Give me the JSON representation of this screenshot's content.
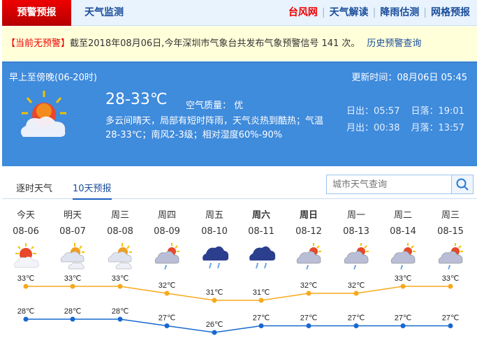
{
  "nav": {
    "active": "预警预报",
    "left": "天气监测",
    "right": [
      "台风网",
      "天气解读",
      "降雨估测",
      "网格预报"
    ]
  },
  "alert": {
    "status": "【当前无预警】",
    "text": "截至2018年08月06日,今年深圳市气象台共发布气象预警信号 141 次。",
    "link": "历史预警查询"
  },
  "today": {
    "period": "早上至傍晚(06-20时)",
    "update": "更新时间：08月06日 05:45",
    "icon": "sunny-cloudy-icon",
    "temp": "28-33℃",
    "air_quality": "空气质量： 优",
    "desc": "多云间晴天，局部有短时阵雨，天气炎热到酷热；气温28-33℃；南风2-3级；相对湿度60%-90%",
    "sunrise": "日出：05:57",
    "sunset": "日落：19:01",
    "moonrise": "月出：00:38",
    "moonset": "月落：13:57"
  },
  "tabs": [
    "逐时天气",
    "10天预报"
  ],
  "search": {
    "placeholder": "城市天气查询",
    "icon": "search-icon"
  },
  "colors": {
    "high": "#f7a91b",
    "low": "#1769cf",
    "panel": "#3f8bdc"
  },
  "days": [
    {
      "name": "今天",
      "date": "08-06",
      "icon": "sunny-cloudy",
      "high": "33℃",
      "low": "28℃",
      "bold": false
    },
    {
      "name": "明天",
      "date": "08-07",
      "icon": "partly-cloudy",
      "high": "33℃",
      "low": "28℃",
      "bold": false
    },
    {
      "name": "周三",
      "date": "08-08",
      "icon": "partly-cloudy",
      "high": "33℃",
      "low": "28℃",
      "bold": false
    },
    {
      "name": "周四",
      "date": "08-09",
      "icon": "shower",
      "high": "32℃",
      "low": "27℃",
      "bold": false
    },
    {
      "name": "周五",
      "date": "08-10",
      "icon": "rain",
      "high": "31℃",
      "low": "26℃",
      "bold": false
    },
    {
      "name": "周六",
      "date": "08-11",
      "icon": "rain",
      "high": "31℃",
      "low": "27℃",
      "bold": true
    },
    {
      "name": "周日",
      "date": "08-12",
      "icon": "shower",
      "high": "32℃",
      "low": "27℃",
      "bold": true
    },
    {
      "name": "周一",
      "date": "08-13",
      "icon": "shower",
      "high": "32℃",
      "low": "27℃",
      "bold": false
    },
    {
      "name": "周二",
      "date": "08-14",
      "icon": "shower",
      "high": "33℃",
      "low": "27℃",
      "bold": false
    },
    {
      "name": "周三",
      "date": "08-15",
      "icon": "shower",
      "high": "33℃",
      "low": "27℃",
      "bold": false
    }
  ],
  "chart_data": {
    "type": "line",
    "categories": [
      "08-06",
      "08-07",
      "08-08",
      "08-09",
      "08-10",
      "08-11",
      "08-12",
      "08-13",
      "08-14",
      "08-15"
    ],
    "series": [
      {
        "values": [
          33,
          33,
          33,
          32,
          31,
          31,
          32,
          32,
          33,
          33
        ]
      },
      {
        "values": [
          28,
          28,
          28,
          27,
          26,
          27,
          27,
          27,
          27,
          27
        ]
      }
    ],
    "unit": "℃"
  }
}
